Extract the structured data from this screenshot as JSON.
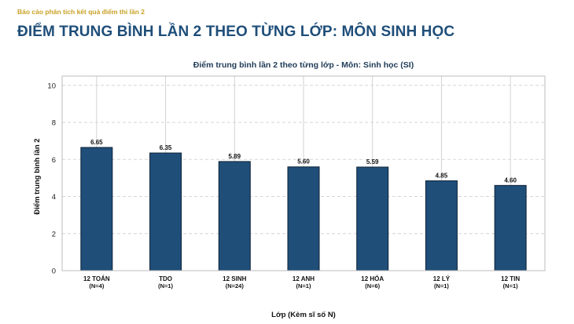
{
  "header": {
    "kicker": "Báo cáo phân tích kết quả điểm thi lần 2",
    "title": "ĐIỂM TRUNG BÌNH LẦN 2 THEO TỪNG LỚP: MÔN SINH HỌC"
  },
  "chart_data": {
    "type": "bar",
    "title": "Điểm trung bình lần 2 theo từng lớp - Môn: Sinh học (SI)",
    "xlabel": "Lớp (Kèm sĩ số N)",
    "ylabel": "Điểm trung bình lần 2",
    "ylim": [
      0,
      10.5
    ],
    "yticks": [
      0,
      2,
      4,
      6,
      8,
      10
    ],
    "grid": true,
    "categories": [
      "12 TOÁN",
      "TDO",
      "12 SINH",
      "12 ANH",
      "12 HÓA",
      "12 LÝ",
      "12 TIN"
    ],
    "category_sublabels": [
      "(N=4)",
      "(N=1)",
      "(N=24)",
      "(N=1)",
      "(N=6)",
      "(N=1)",
      "(N=1)"
    ],
    "values": [
      6.65,
      6.35,
      5.89,
      5.6,
      5.59,
      4.85,
      4.6
    ],
    "value_labels": [
      "6.65",
      "6.35",
      "5.89",
      "5.60",
      "5.59",
      "4.85",
      "4.60"
    ],
    "bar_color": "#1f4e79",
    "bar_edge_color": "#0d2236"
  }
}
